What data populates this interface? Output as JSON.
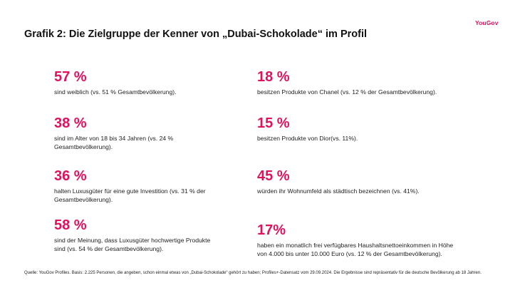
{
  "brand": {
    "logo_text": "YouGov",
    "color": "#e0115f"
  },
  "title": "Grafik 2: Die Zielgruppe der Kenner von „Dubai-Schokolade“ im Profil",
  "stats": [
    {
      "pct": "57 %",
      "desc": "sind weiblich (vs. 51 % Gesamtbevölkerung)."
    },
    {
      "pct": "38 %",
      "desc": "sind im Alter von 18 bis 34 Jahren (vs. 24 % Gesamtbevölkerung)."
    },
    {
      "pct": "36 %",
      "desc": "halten Luxusgüter für eine gute Investition (vs. 31 % der Gesamtbevölkerung)."
    },
    {
      "pct": "58 %",
      "desc": "sind der Meinung, dass Luxusgüter hochwertige Produkte sind (vs. 54 % der Gesamtbevölkerung)."
    },
    {
      "pct": "18 %",
      "desc": "besitzen Produkte von Chanel (vs. 12 % der Gesamtbevölkerung)."
    },
    {
      "pct": "15 %",
      "desc": "besitzen Produkte von Dior(vs. 11%)."
    },
    {
      "pct": "45 %",
      "desc": "würden ihr Wohnumfeld als städtisch bezeichnen (vs. 41%)."
    },
    {
      "pct": "17%",
      "desc": "haben ein monatlich frei verfügbares Haushaltsnettoeinkommen in Höhe von 4.000 bis unter 10.000 Euro (vs. 12 % der Gesamtbevölkerung)."
    }
  ],
  "source": "Quelle: YouGov Profiles. Basis: 2.225 Personen, die angeben, schon einmal etwas von „Dubai-Schokolade“ gehört zu haben; Profiles+-Datensatz vom 29.09.2024. Die Ergebnisse sind repräsentativ für die deutsche Bevölkerung ab 18 Jahren."
}
